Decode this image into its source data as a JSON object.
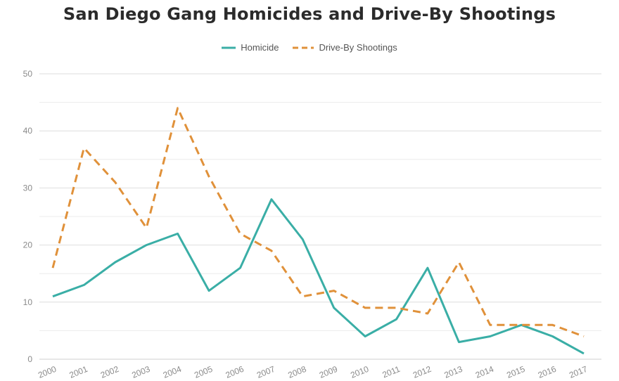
{
  "chart_data": {
    "type": "line",
    "title": "San Diego Gang Homicides and Drive-By Shootings",
    "xlabel": "",
    "ylabel": "",
    "categories": [
      "2000",
      "2001",
      "2002",
      "2003",
      "2004",
      "2005",
      "2006",
      "2007",
      "2008",
      "2009",
      "2010",
      "2011",
      "2012",
      "2013",
      "2014",
      "2015",
      "2016",
      "2017"
    ],
    "series": [
      {
        "name": "Homicide",
        "color": "#3aaea6",
        "dashed": false,
        "values": [
          11,
          13,
          17,
          20,
          22,
          12,
          16,
          28,
          21,
          9,
          4,
          7,
          16,
          3,
          4,
          6,
          4,
          1
        ]
      },
      {
        "name": "Drive-By Shootings",
        "color": "#e0913a",
        "dashed": true,
        "values": [
          16,
          37,
          31,
          23,
          44,
          32,
          22,
          19,
          11,
          12,
          9,
          9,
          8,
          17,
          6,
          6,
          6,
          4
        ]
      }
    ],
    "ylim": [
      0,
      50
    ],
    "yticks": [
      0,
      10,
      20,
      30,
      40,
      50
    ],
    "grid": true,
    "legend_position": "top-center"
  }
}
